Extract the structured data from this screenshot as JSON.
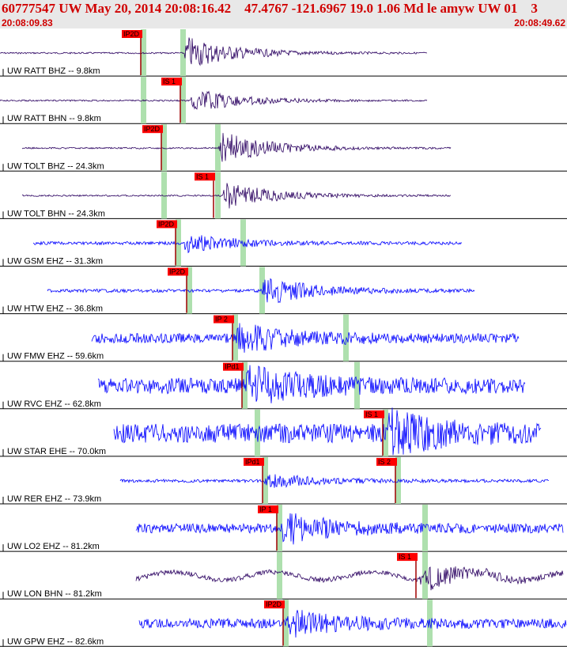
{
  "header": {
    "title": "60777547 UW May 20, 2014 20:08:16.42    47.4767 -121.6967 19.0 1.06 Md le amyw UW 01    3",
    "start_time": "20:08:09.83",
    "end_time": "20:08:49.62"
  },
  "colors": {
    "title": "#d00000",
    "header_bg": "#e8e8e8",
    "trace_dark": "#2a0060",
    "trace_blue": "#0000ff",
    "pick_box": "#ff0000",
    "window": "#aee0ae"
  },
  "traces": [
    {
      "label": "UW RATT BHZ -- 9.8km",
      "color": "dark",
      "pick": "IP2D",
      "pick2": ""
    },
    {
      "label": "UW RATT BHN -- 9.8km",
      "color": "dark",
      "pick": "",
      "pick2": "IS 1"
    },
    {
      "label": "UW TOLT BHZ -- 24.3km",
      "color": "dark",
      "pick": "IP2D",
      "pick2": ""
    },
    {
      "label": "UW TOLT BHN -- 24.3km",
      "color": "dark",
      "pick": "",
      "pick2": "IS 1"
    },
    {
      "label": "UW GSM EHZ -- 31.3km",
      "color": "blue",
      "pick": "IP2D",
      "pick2": ""
    },
    {
      "label": "UW HTW EHZ -- 36.8km",
      "color": "blue",
      "pick": "IP2D",
      "pick2": ""
    },
    {
      "label": "UW FMW EHZ -- 59.6km",
      "color": "blue",
      "pick": "IP 2",
      "pick2": ""
    },
    {
      "label": "UW RVC EHZ -- 62.8km",
      "color": "blue",
      "pick": "IPd1",
      "pick2": ""
    },
    {
      "label": "UW STAR EHE -- 70.0km",
      "color": "blue",
      "pick": "",
      "pick2": "IS 1"
    },
    {
      "label": "UW RER EHZ -- 73.9km",
      "color": "blue",
      "pick": "IPd1",
      "pick2": "IS 2"
    },
    {
      "label": "UW LO2 EHZ -- 81.2km",
      "color": "blue",
      "pick": "IP 1",
      "pick2": ""
    },
    {
      "label": "UW LON BHN -- 81.2km",
      "color": "dark",
      "pick": "",
      "pick2": "IS 1"
    },
    {
      "label": "UW GPW EHZ -- 82.6km",
      "color": "blue",
      "pick": "IP2D",
      "pick2": ""
    }
  ]
}
